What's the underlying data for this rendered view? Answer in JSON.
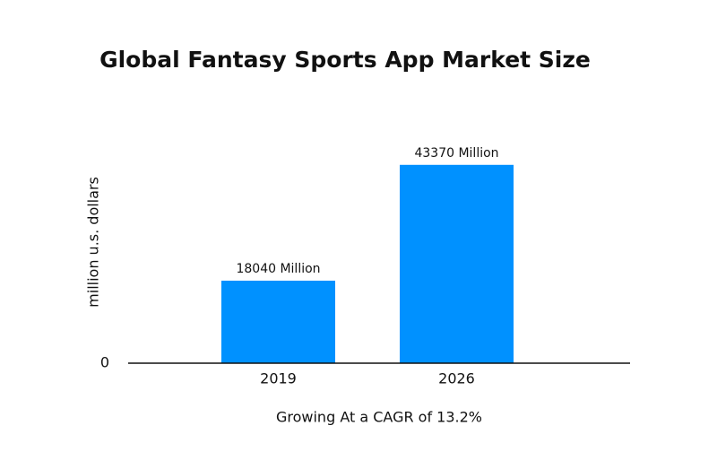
{
  "chart_data": {
    "type": "bar",
    "title": "Global Fantasy Sports App Market Size",
    "y_label": "million u.s. dollars",
    "x_label": "Growing At a CAGR of 13.2%",
    "categories": [
      "2019",
      "2026"
    ],
    "values": [
      18040,
      43370
    ],
    "value_labels": [
      "18040 Million",
      "43370 Million"
    ],
    "color": "#0091ff",
    "ylim": [
      0,
      50000
    ],
    "yticks": [
      0
    ],
    "grid": false
  }
}
